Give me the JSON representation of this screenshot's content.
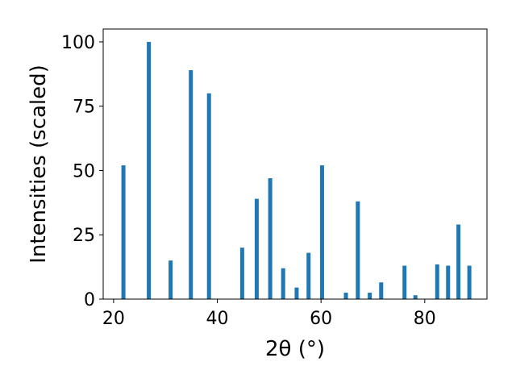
{
  "chart_data": {
    "type": "bar",
    "xlabel": "2θ (°)",
    "ylabel": "Intensities (scaled)",
    "xlim": [
      18,
      92
    ],
    "ylim": [
      0,
      105
    ],
    "xticks": [
      20,
      40,
      60,
      80
    ],
    "yticks": [
      0,
      25,
      50,
      75,
      100
    ],
    "bar_color": "#1f77b4",
    "x": [
      21.9,
      26.8,
      31.0,
      34.9,
      38.4,
      44.8,
      47.6,
      50.2,
      52.7,
      55.3,
      57.6,
      60.2,
      64.8,
      67.1,
      69.4,
      71.6,
      76.1,
      78.2,
      82.4,
      84.5,
      86.5,
      88.6
    ],
    "values": [
      52,
      100,
      15,
      89,
      80,
      20,
      39,
      47,
      12,
      4.5,
      18,
      52,
      2.5,
      38,
      2.5,
      6.5,
      13,
      1.5,
      13.5,
      13,
      29,
      13
    ]
  }
}
